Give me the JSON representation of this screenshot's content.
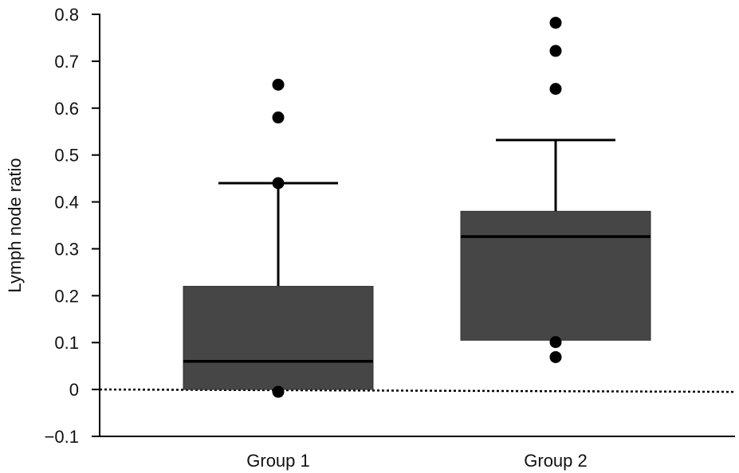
{
  "chart_data": {
    "type": "box",
    "title": "",
    "xlabel": "",
    "ylabel": "Lymph node ratio",
    "ylim": [
      -0.1,
      0.8
    ],
    "yticks": [
      "0.8",
      "0.7",
      "0.6",
      "0.5",
      "0.4",
      "0.3",
      "0.2",
      "0.1",
      "0",
      "−0.1"
    ],
    "ytick_values": [
      0.8,
      0.7,
      0.6,
      0.5,
      0.4,
      0.3,
      0.2,
      0.1,
      0,
      -0.1
    ],
    "categories": [
      "Group 1",
      "Group 2"
    ],
    "boxes": [
      {
        "q1": 0.0,
        "median": 0.06,
        "q3": 0.22,
        "whisker_low": 0.0,
        "whisker_high": 0.44,
        "outliers": [
          0.65,
          0.58,
          0.44,
          -0.005
        ]
      },
      {
        "q1": 0.105,
        "median": 0.326,
        "q3": 0.38,
        "whisker_low": 0.105,
        "whisker_high": 0.532,
        "outliers": [
          0.782,
          0.722,
          0.641,
          0.101,
          0.069
        ]
      }
    ],
    "reference_line": {
      "y": 0,
      "style": "dotted"
    },
    "grid": false,
    "colors": {
      "box_fill": "#464646",
      "line": "#000000",
      "point": "#000000"
    }
  }
}
